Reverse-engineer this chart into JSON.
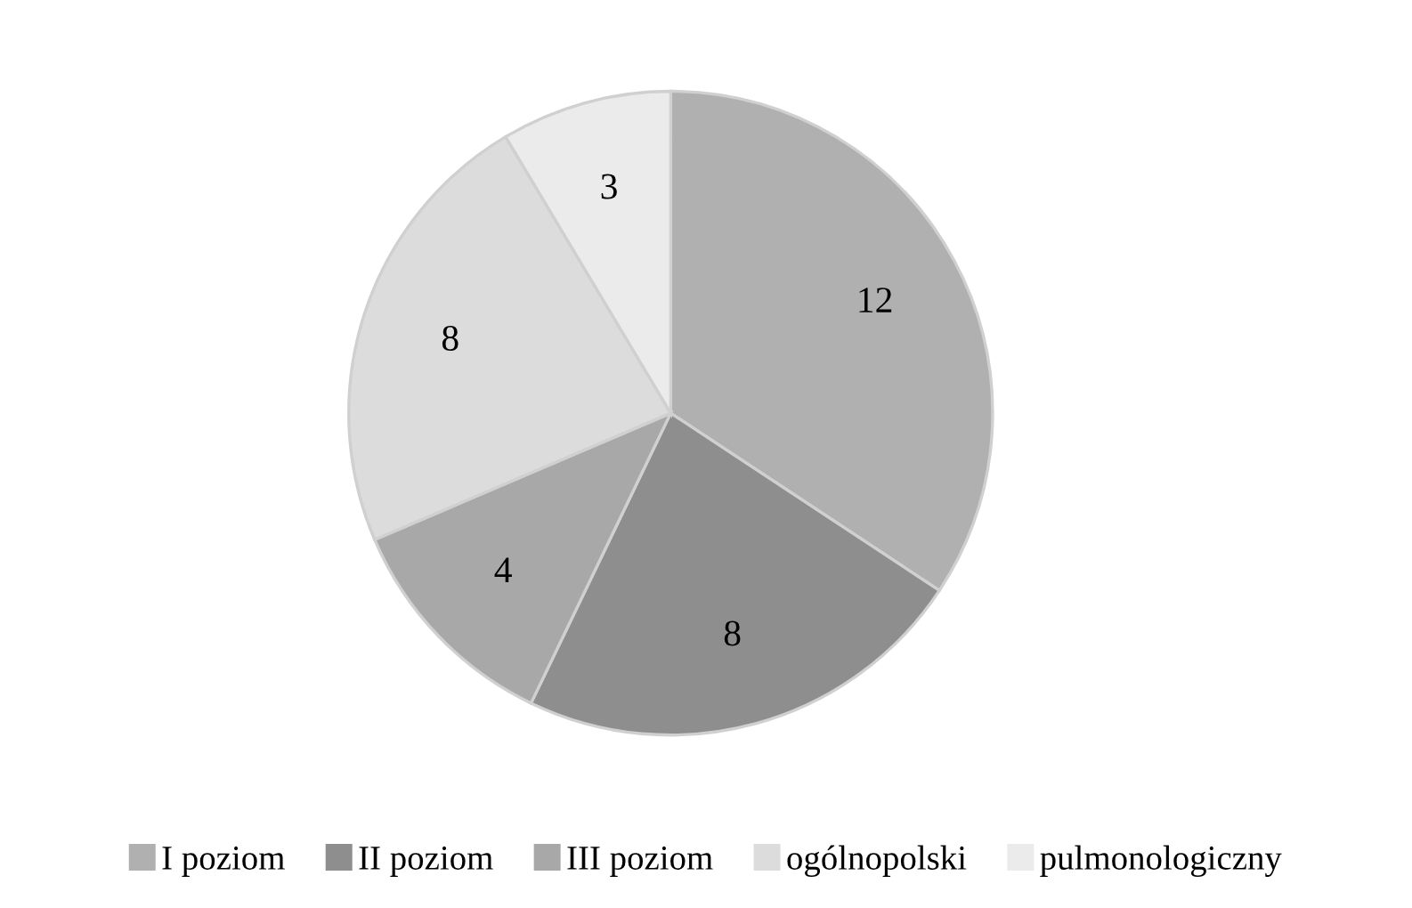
{
  "chart_data": {
    "type": "pie",
    "categories": [
      "I poziom",
      "II poziom",
      "III poziom",
      "ogólnopolski",
      "pulmonologiczny"
    ],
    "values": [
      12,
      8,
      4,
      8,
      3
    ],
    "colors": [
      "#b0b0b0",
      "#8e8e8e",
      "#a8a8a8",
      "#dcdcdc",
      "#ebebeb"
    ],
    "data_labels": true,
    "legend": "bottom"
  }
}
